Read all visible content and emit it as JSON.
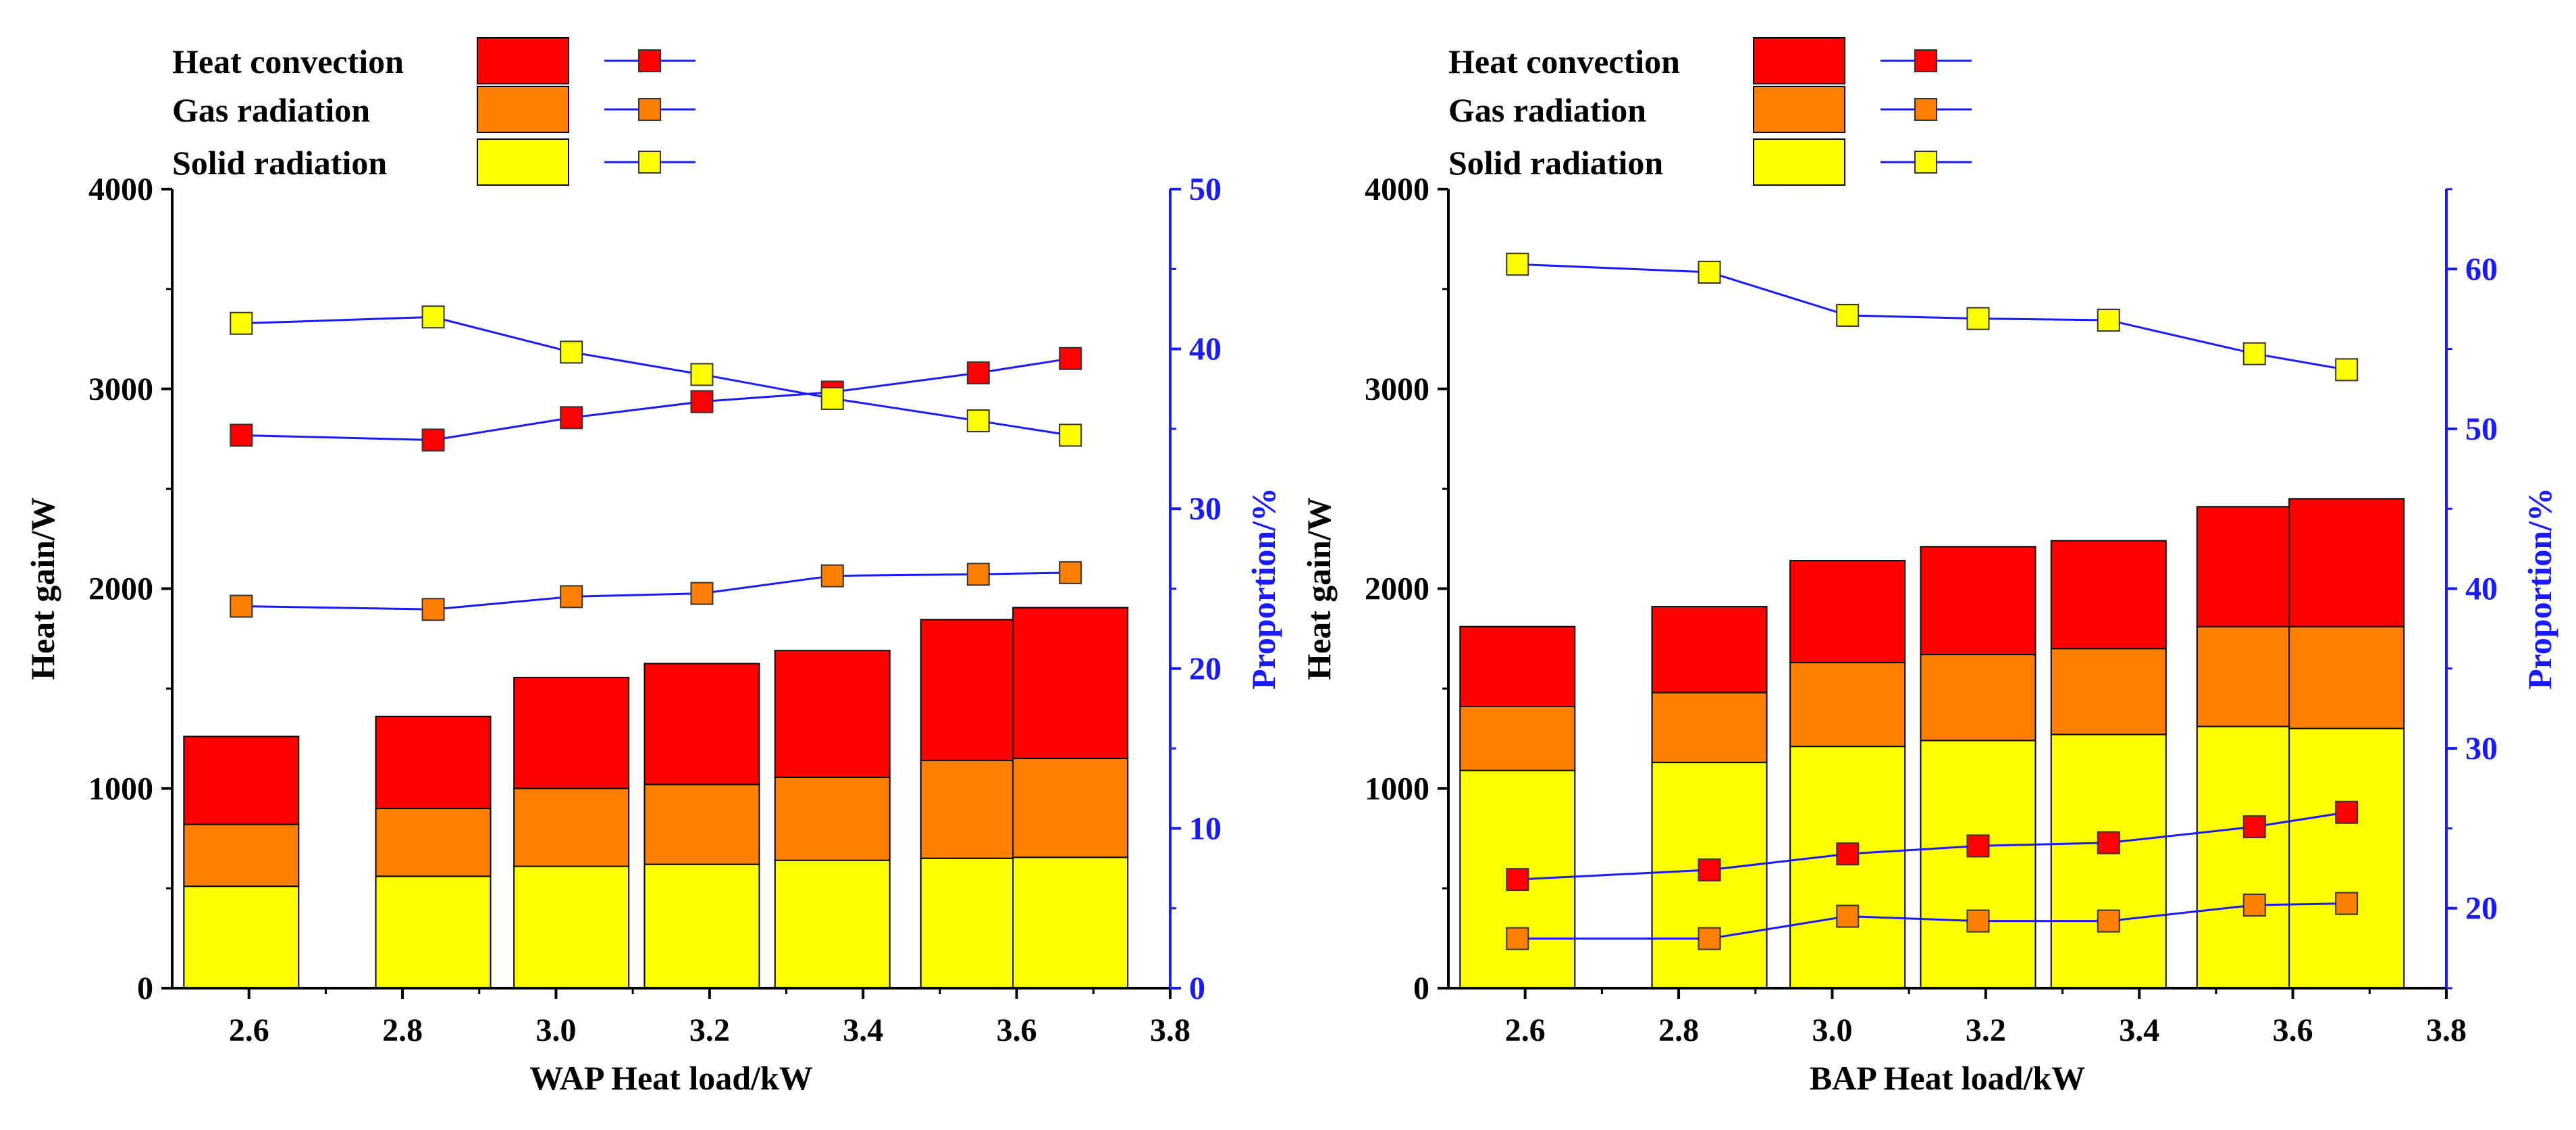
{
  "colors": {
    "convection": "#ff0000",
    "gas": "#ff8000",
    "solid": "#ffff00",
    "line": "#1a1aff",
    "axis": "#000000",
    "right_axis": "#1a1aff"
  },
  "chart_data": [
    {
      "type": "bar",
      "panel": "left",
      "xlabel": "WAP  Heat load/kW",
      "ylabel": "Heat gain/W",
      "y2label": "Proportion/%",
      "xlim": [
        2.5,
        3.8
      ],
      "xticks": [
        2.6,
        2.8,
        3.0,
        3.2,
        3.4,
        3.6,
        3.8
      ],
      "xtick_labels": [
        "2.6",
        "2.8",
        "3.0",
        "3.2",
        "3.4",
        "3.6",
        "3.8"
      ],
      "ylim": [
        0,
        4000
      ],
      "yticks": [
        0,
        1000,
        2000,
        3000,
        4000
      ],
      "ytick_labels": [
        "0",
        "1000",
        "2000",
        "3000",
        "4000"
      ],
      "y2lim": [
        0,
        50
      ],
      "y2ticks": [
        0,
        10,
        20,
        30,
        40,
        50
      ],
      "y2tick_labels": [
        "0",
        "10",
        "20",
        "30",
        "40",
        "50"
      ],
      "legend": [
        "Heat convection",
        "Gas radiation",
        "Solid radiation"
      ],
      "x": [
        2.59,
        2.84,
        3.02,
        3.19,
        3.36,
        3.55,
        3.67
      ],
      "series": [
        {
          "name": "Solid radiation",
          "kind": "bar",
          "values": [
            510,
            560,
            610,
            620,
            640,
            650,
            655
          ]
        },
        {
          "name": "Gas radiation",
          "kind": "bar",
          "values": [
            310,
            340,
            390,
            400,
            415,
            490,
            495
          ]
        },
        {
          "name": "Heat convection",
          "kind": "bar",
          "values": [
            440,
            460,
            555,
            605,
            635,
            705,
            755
          ]
        },
        {
          "name": "Heat convection",
          "kind": "line",
          "axis": "right",
          "values": [
            34.6,
            34.3,
            35.7,
            36.7,
            37.3,
            38.5,
            39.4
          ]
        },
        {
          "name": "Gas radiation",
          "kind": "line",
          "axis": "right",
          "values": [
            23.9,
            23.7,
            24.5,
            24.7,
            25.8,
            25.9,
            26.0
          ]
        },
        {
          "name": "Solid radiation",
          "kind": "line",
          "axis": "right",
          "values": [
            41.6,
            42.0,
            39.8,
            38.4,
            36.9,
            35.5,
            34.6
          ]
        }
      ]
    },
    {
      "type": "bar",
      "panel": "right",
      "xlabel": "BAP  Heat load/kW",
      "ylabel": "Heat gain/W",
      "y2label": "Proportion/%",
      "xlim": [
        2.5,
        3.8
      ],
      "xticks": [
        2.6,
        2.8,
        3.0,
        3.2,
        3.4,
        3.6,
        3.8
      ],
      "xtick_labels": [
        "2.6",
        "2.8",
        "3.0",
        "3.2",
        "3.4",
        "3.6",
        "3.8"
      ],
      "ylim": [
        0,
        4000
      ],
      "yticks": [
        0,
        1000,
        2000,
        3000,
        4000
      ],
      "ytick_labels": [
        "0",
        "1000",
        "2000",
        "3000",
        "4000"
      ],
      "y2lim": [
        15,
        65
      ],
      "y2ticks": [
        20,
        30,
        40,
        50,
        60
      ],
      "y2tick_labels": [
        "20",
        "30",
        "40",
        "50",
        "60"
      ],
      "legend": [
        "Heat convection",
        "Gas radiation",
        "Solid radiation"
      ],
      "x": [
        2.59,
        2.84,
        3.02,
        3.19,
        3.36,
        3.55,
        3.67
      ],
      "series": [
        {
          "name": "Solid radiation",
          "kind": "bar",
          "values": [
            1090,
            1130,
            1210,
            1240,
            1270,
            1310,
            1300
          ]
        },
        {
          "name": "Gas radiation",
          "kind": "bar",
          "values": [
            320,
            350,
            420,
            430,
            430,
            500,
            510
          ]
        },
        {
          "name": "Heat convection",
          "kind": "bar",
          "values": [
            400,
            430,
            510,
            540,
            540,
            600,
            640
          ]
        },
        {
          "name": "Heat convection",
          "kind": "line",
          "axis": "right",
          "values": [
            21.8,
            22.4,
            23.4,
            23.9,
            24.1,
            25.1,
            26.0
          ]
        },
        {
          "name": "Gas radiation",
          "kind": "line",
          "axis": "right",
          "values": [
            18.1,
            18.1,
            19.5,
            19.2,
            19.2,
            20.2,
            20.3
          ]
        },
        {
          "name": "Solid radiation",
          "kind": "line",
          "axis": "right",
          "values": [
            60.3,
            59.8,
            57.1,
            56.9,
            56.8,
            54.7,
            53.7
          ]
        }
      ]
    }
  ]
}
